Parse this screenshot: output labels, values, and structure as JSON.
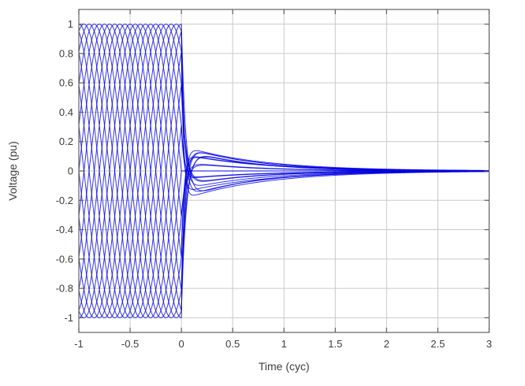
{
  "chart_data": {
    "type": "line",
    "title": "",
    "xlabel": "Time (cyc)",
    "ylabel": "Voltage (pu)",
    "xlim": [
      -1,
      3
    ],
    "ylim": [
      -1.1,
      1.1
    ],
    "x_ticks": [
      -1,
      -0.5,
      0,
      0.5,
      1,
      1.5,
      2,
      2.5,
      3
    ],
    "x_tick_labels": [
      "-1",
      "-0.5",
      "0",
      "0.5",
      "1",
      "1.5",
      "2",
      "2.5",
      "3"
    ],
    "y_ticks": [
      -1,
      -0.8,
      -0.6,
      -0.4,
      -0.2,
      0,
      0.2,
      0.4,
      0.6,
      0.8,
      1
    ],
    "y_tick_labels": [
      "-1",
      "-0.8",
      "-0.6",
      "-0.4",
      "-0.2",
      "0",
      "0.2",
      "0.4",
      "0.6",
      "0.8",
      "1"
    ],
    "grid": true,
    "legend": null,
    "line_color": "#0000E0",
    "grid_color": "#C9C9C9",
    "axes_color": "#606060",
    "text_color": "#3C3C3C",
    "background": "#FFFFFF",
    "description": "Family of overlaid voltage waveforms: 1 pu sinusoids at evenly spaced phase angles for t in [-1,0] cyc; at t=0 each collapses into a decaying transient with polarity reversal, envelope approx +/-0.17 pu near t=0.15 cyc, decaying to approx 0 pu by t=3 cyc.",
    "series_model": {
      "num_curves": 20,
      "phase_step_deg": 18,
      "pre_fault_amplitude_pu": 1,
      "pre_fault_frequency_cyc": 1,
      "pre_fault_t_start_cyc": -1,
      "fault_time_cyc": 0,
      "t_end_cyc": 3,
      "fast_tau_cyc_min": 0.018,
      "fast_tau_cyc_max": 0.05,
      "slow_tau_cyc_min": 0.6,
      "slow_tau_cyc_max": 0.8,
      "slow_fraction_min": 0.16,
      "slow_fraction_max": 0.21,
      "envelope_peak_pu": 0.17,
      "envelope_peak_time_cyc": 0.15
    }
  }
}
